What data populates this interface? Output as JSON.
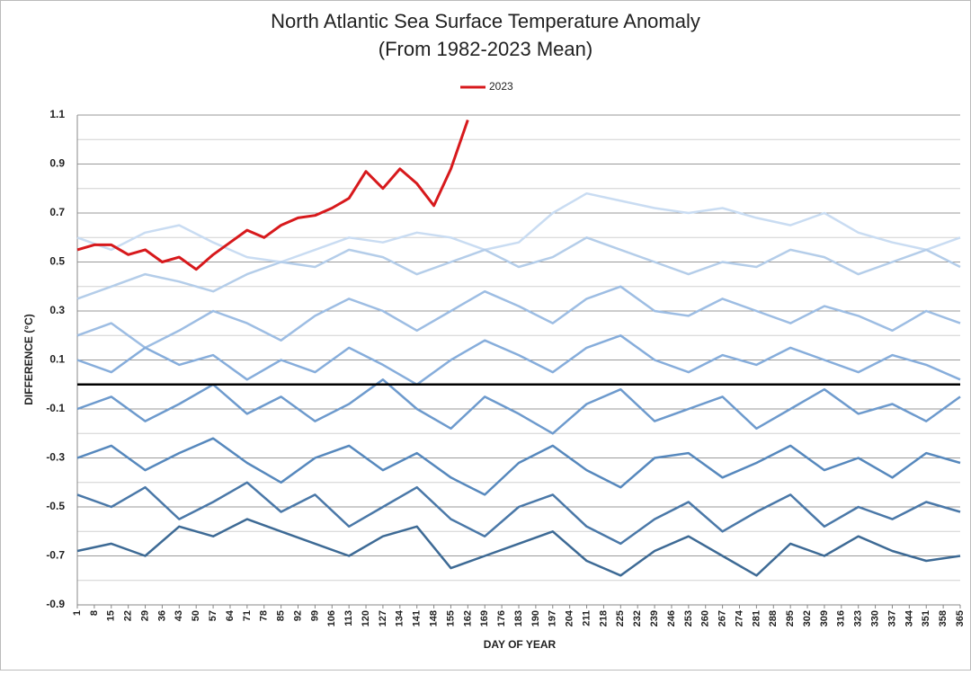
{
  "chart_data": {
    "type": "line",
    "title": "North Atlantic Sea Surface Temperature Anomaly",
    "subtitle": "(From 1982-2023 Mean)",
    "y_label": "DIFFERENCE (°C)",
    "x_label": "DAY OF YEAR",
    "xlim": [
      1,
      365
    ],
    "ylim": [
      -0.9,
      1.1
    ],
    "yticks": [
      1.1,
      0.9,
      0.7,
      0.5,
      0.3,
      0.1,
      -0.1,
      -0.3,
      -0.5,
      -0.7,
      -0.9
    ],
    "minor_yticks": [
      1.0,
      0.8,
      0.6,
      0.4,
      0.2,
      0,
      -0.2,
      -0.4,
      -0.6,
      -0.8
    ],
    "xticks": [
      1,
      8,
      15,
      22,
      29,
      36,
      43,
      50,
      57,
      64,
      71,
      78,
      85,
      92,
      99,
      106,
      113,
      120,
      127,
      134,
      141,
      148,
      155,
      162,
      169,
      176,
      183,
      190,
      197,
      204,
      211,
      218,
      225,
      232,
      239,
      246,
      253,
      260,
      267,
      274,
      281,
      288,
      295,
      302,
      309,
      316,
      323,
      330,
      337,
      344,
      351,
      358,
      365
    ],
    "grid": true,
    "baseline": 0,
    "legend": "top",
    "x": [
      1,
      15,
      29,
      43,
      57,
      71,
      85,
      99,
      113,
      127,
      141,
      155,
      169,
      183,
      197,
      211,
      225,
      239,
      253,
      267,
      281,
      295,
      309,
      323,
      337,
      351,
      365
    ],
    "series": [
      {
        "name": "2023",
        "color": "#d7191c",
        "x": [
          1,
          8,
          15,
          22,
          29,
          36,
          43,
          50,
          57,
          64,
          71,
          78,
          85,
          92,
          99,
          106,
          113,
          120,
          127,
          134,
          141,
          148,
          155,
          162
        ],
        "values": [
          0.55,
          0.57,
          0.57,
          0.53,
          0.55,
          0.5,
          0.52,
          0.47,
          0.53,
          0.58,
          0.63,
          0.6,
          0.65,
          0.68,
          0.69,
          0.72,
          0.76,
          0.87,
          0.8,
          0.88,
          0.82,
          0.73,
          0.88,
          1.08
        ]
      },
      {
        "color": "#c9dcf2",
        "values": [
          0.6,
          0.55,
          0.62,
          0.65,
          0.58,
          0.52,
          0.5,
          0.55,
          0.6,
          0.58,
          0.62,
          0.6,
          0.55,
          0.58,
          0.7,
          0.78,
          0.75,
          0.72,
          0.7,
          0.72,
          0.68,
          0.65,
          0.7,
          0.62,
          0.58,
          0.55,
          0.6
        ]
      },
      {
        "color": "#b4cde9",
        "values": [
          0.35,
          0.4,
          0.45,
          0.42,
          0.38,
          0.45,
          0.5,
          0.48,
          0.55,
          0.52,
          0.45,
          0.5,
          0.55,
          0.48,
          0.52,
          0.6,
          0.55,
          0.5,
          0.45,
          0.5,
          0.48,
          0.55,
          0.52,
          0.45,
          0.5,
          0.55,
          0.48
        ]
      },
      {
        "color": "#9dbde3",
        "values": [
          0.2,
          0.25,
          0.15,
          0.22,
          0.3,
          0.25,
          0.18,
          0.28,
          0.35,
          0.3,
          0.22,
          0.3,
          0.38,
          0.32,
          0.25,
          0.35,
          0.4,
          0.3,
          0.28,
          0.35,
          0.3,
          0.25,
          0.32,
          0.28,
          0.22,
          0.3,
          0.25
        ]
      },
      {
        "color": "#86addb",
        "values": [
          0.1,
          0.05,
          0.15,
          0.08,
          0.12,
          0.02,
          0.1,
          0.05,
          0.15,
          0.08,
          0.0,
          0.1,
          0.18,
          0.12,
          0.05,
          0.15,
          0.2,
          0.1,
          0.05,
          0.12,
          0.08,
          0.15,
          0.1,
          0.05,
          0.12,
          0.08,
          0.02
        ]
      },
      {
        "color": "#6d9acd",
        "values": [
          -0.1,
          -0.05,
          -0.15,
          -0.08,
          0.0,
          -0.12,
          -0.05,
          -0.15,
          -0.08,
          0.02,
          -0.1,
          -0.18,
          -0.05,
          -0.12,
          -0.2,
          -0.08,
          -0.02,
          -0.15,
          -0.1,
          -0.05,
          -0.18,
          -0.1,
          -0.02,
          -0.12,
          -0.08,
          -0.15,
          -0.05
        ]
      },
      {
        "color": "#5688bd",
        "values": [
          -0.3,
          -0.25,
          -0.35,
          -0.28,
          -0.22,
          -0.32,
          -0.4,
          -0.3,
          -0.25,
          -0.35,
          -0.28,
          -0.38,
          -0.45,
          -0.32,
          -0.25,
          -0.35,
          -0.42,
          -0.3,
          -0.28,
          -0.38,
          -0.32,
          -0.25,
          -0.35,
          -0.3,
          -0.38,
          -0.28,
          -0.32
        ]
      },
      {
        "color": "#4a78a8",
        "values": [
          -0.45,
          -0.5,
          -0.42,
          -0.55,
          -0.48,
          -0.4,
          -0.52,
          -0.45,
          -0.58,
          -0.5,
          -0.42,
          -0.55,
          -0.62,
          -0.5,
          -0.45,
          -0.58,
          -0.65,
          -0.55,
          -0.48,
          -0.6,
          -0.52,
          -0.45,
          -0.58,
          -0.5,
          -0.55,
          -0.48,
          -0.52
        ]
      },
      {
        "color": "#3d6a95",
        "values": [
          -0.68,
          -0.65,
          -0.7,
          -0.58,
          -0.62,
          -0.55,
          -0.6,
          -0.65,
          -0.7,
          -0.62,
          -0.58,
          -0.75,
          -0.7,
          -0.65,
          -0.6,
          -0.72,
          -0.78,
          -0.68,
          -0.62,
          -0.7,
          -0.78,
          -0.65,
          -0.7,
          -0.62,
          -0.68,
          -0.72,
          -0.7
        ]
      }
    ]
  }
}
